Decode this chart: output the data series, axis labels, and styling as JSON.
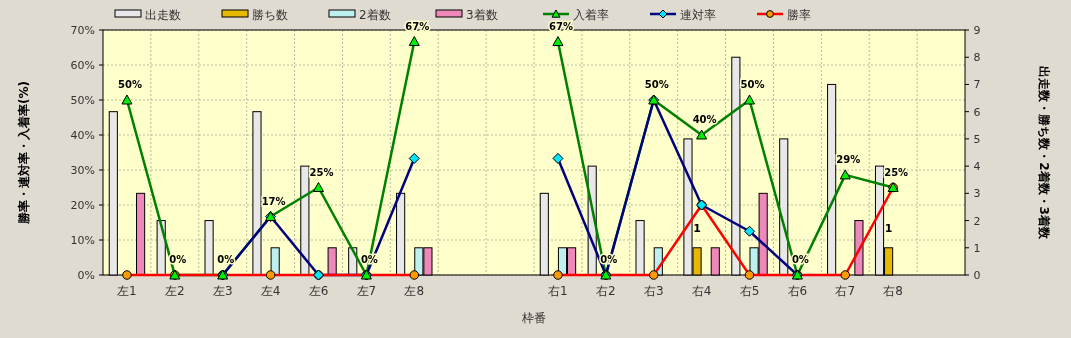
{
  "chart_data": {
    "type": "bar",
    "xlabel": "枠番",
    "ylabel": "勝率・連対率・入着率(%)",
    "y2label": "出走数・勝ち数・2着数・3着数",
    "categories": [
      "左1",
      "左2",
      "左3",
      "左4",
      "左6",
      "左7",
      "左8",
      null,
      null,
      "右1",
      "右2",
      "右3",
      "右4",
      "右5",
      "右6",
      "右7",
      "右8",
      null
    ],
    "ylim": [
      0,
      70
    ],
    "yticks": [
      {
        "value": 0,
        "label": "0%"
      },
      {
        "value": 10,
        "label": "10%"
      },
      {
        "value": 20,
        "label": "20%"
      },
      {
        "value": 30,
        "label": "30%"
      },
      {
        "value": 40,
        "label": "40%"
      },
      {
        "value": 50,
        "label": "50%"
      },
      {
        "value": 60,
        "label": "60%"
      },
      {
        "value": 70,
        "label": "70%"
      }
    ],
    "y2lim": [
      0,
      9
    ],
    "y2ticks": [
      0,
      1,
      2,
      3,
      4,
      5,
      6,
      7,
      8,
      9
    ],
    "grid": true,
    "legend": "top",
    "series": [
      {
        "name": "出走数",
        "axis": "y2",
        "color": "#e8e8e8",
        "values": [
          6,
          2,
          2,
          6,
          4,
          1,
          3,
          null,
          null,
          3,
          4,
          2,
          5,
          8,
          5,
          7,
          4,
          null
        ]
      },
      {
        "name": "勝ち数",
        "axis": "y2",
        "color": "#e6b800",
        "values": [
          0,
          0,
          0,
          0,
          0,
          0,
          0,
          null,
          null,
          0,
          0,
          0,
          1,
          0,
          0,
          0,
          1,
          null
        ],
        "value_labels": [
          null,
          null,
          null,
          null,
          null,
          null,
          null,
          null,
          null,
          null,
          null,
          null,
          "1",
          null,
          null,
          null,
          "1",
          null
        ]
      },
      {
        "name": "2着数",
        "axis": "y2",
        "color": "#bff0f0",
        "values": [
          0,
          0,
          0,
          1,
          0,
          0,
          1,
          null,
          null,
          1,
          0,
          1,
          0,
          1,
          0,
          0,
          0,
          null
        ]
      },
      {
        "name": "3着数",
        "axis": "y2",
        "color": "#ee88bb",
        "values": [
          3,
          0,
          0,
          0,
          1,
          0,
          1,
          null,
          null,
          1,
          0,
          0,
          1,
          3,
          0,
          2,
          0,
          null
        ]
      },
      {
        "name": "入着率",
        "type": "line",
        "color": "#008000",
        "marker": "triangle",
        "values": [
          50,
          0,
          0,
          16.7,
          25,
          0,
          66.7,
          null,
          null,
          66.7,
          0,
          50,
          40,
          50,
          0,
          28.6,
          25,
          null
        ],
        "value_labels": [
          "50%",
          "0%",
          "0%",
          "17%",
          "25%",
          "0%",
          "67%",
          null,
          null,
          "67%",
          "0%",
          "50%",
          "40%",
          "50%",
          "0%",
          "29%",
          "25%",
          null
        ]
      },
      {
        "name": "連対率",
        "type": "line",
        "color": "#000080",
        "marker": "diamond",
        "values": [
          null,
          null,
          0,
          16.7,
          0,
          0,
          33.3,
          null,
          null,
          33.3,
          0,
          50,
          20,
          12.5,
          0,
          null,
          null,
          null
        ]
      },
      {
        "name": "勝率",
        "type": "line",
        "color": "#ff0000",
        "marker": "circle",
        "values": [
          0,
          0,
          0,
          0,
          0,
          0,
          0,
          null,
          null,
          0,
          0,
          0,
          20,
          0,
          0,
          0,
          25,
          null
        ]
      }
    ]
  }
}
